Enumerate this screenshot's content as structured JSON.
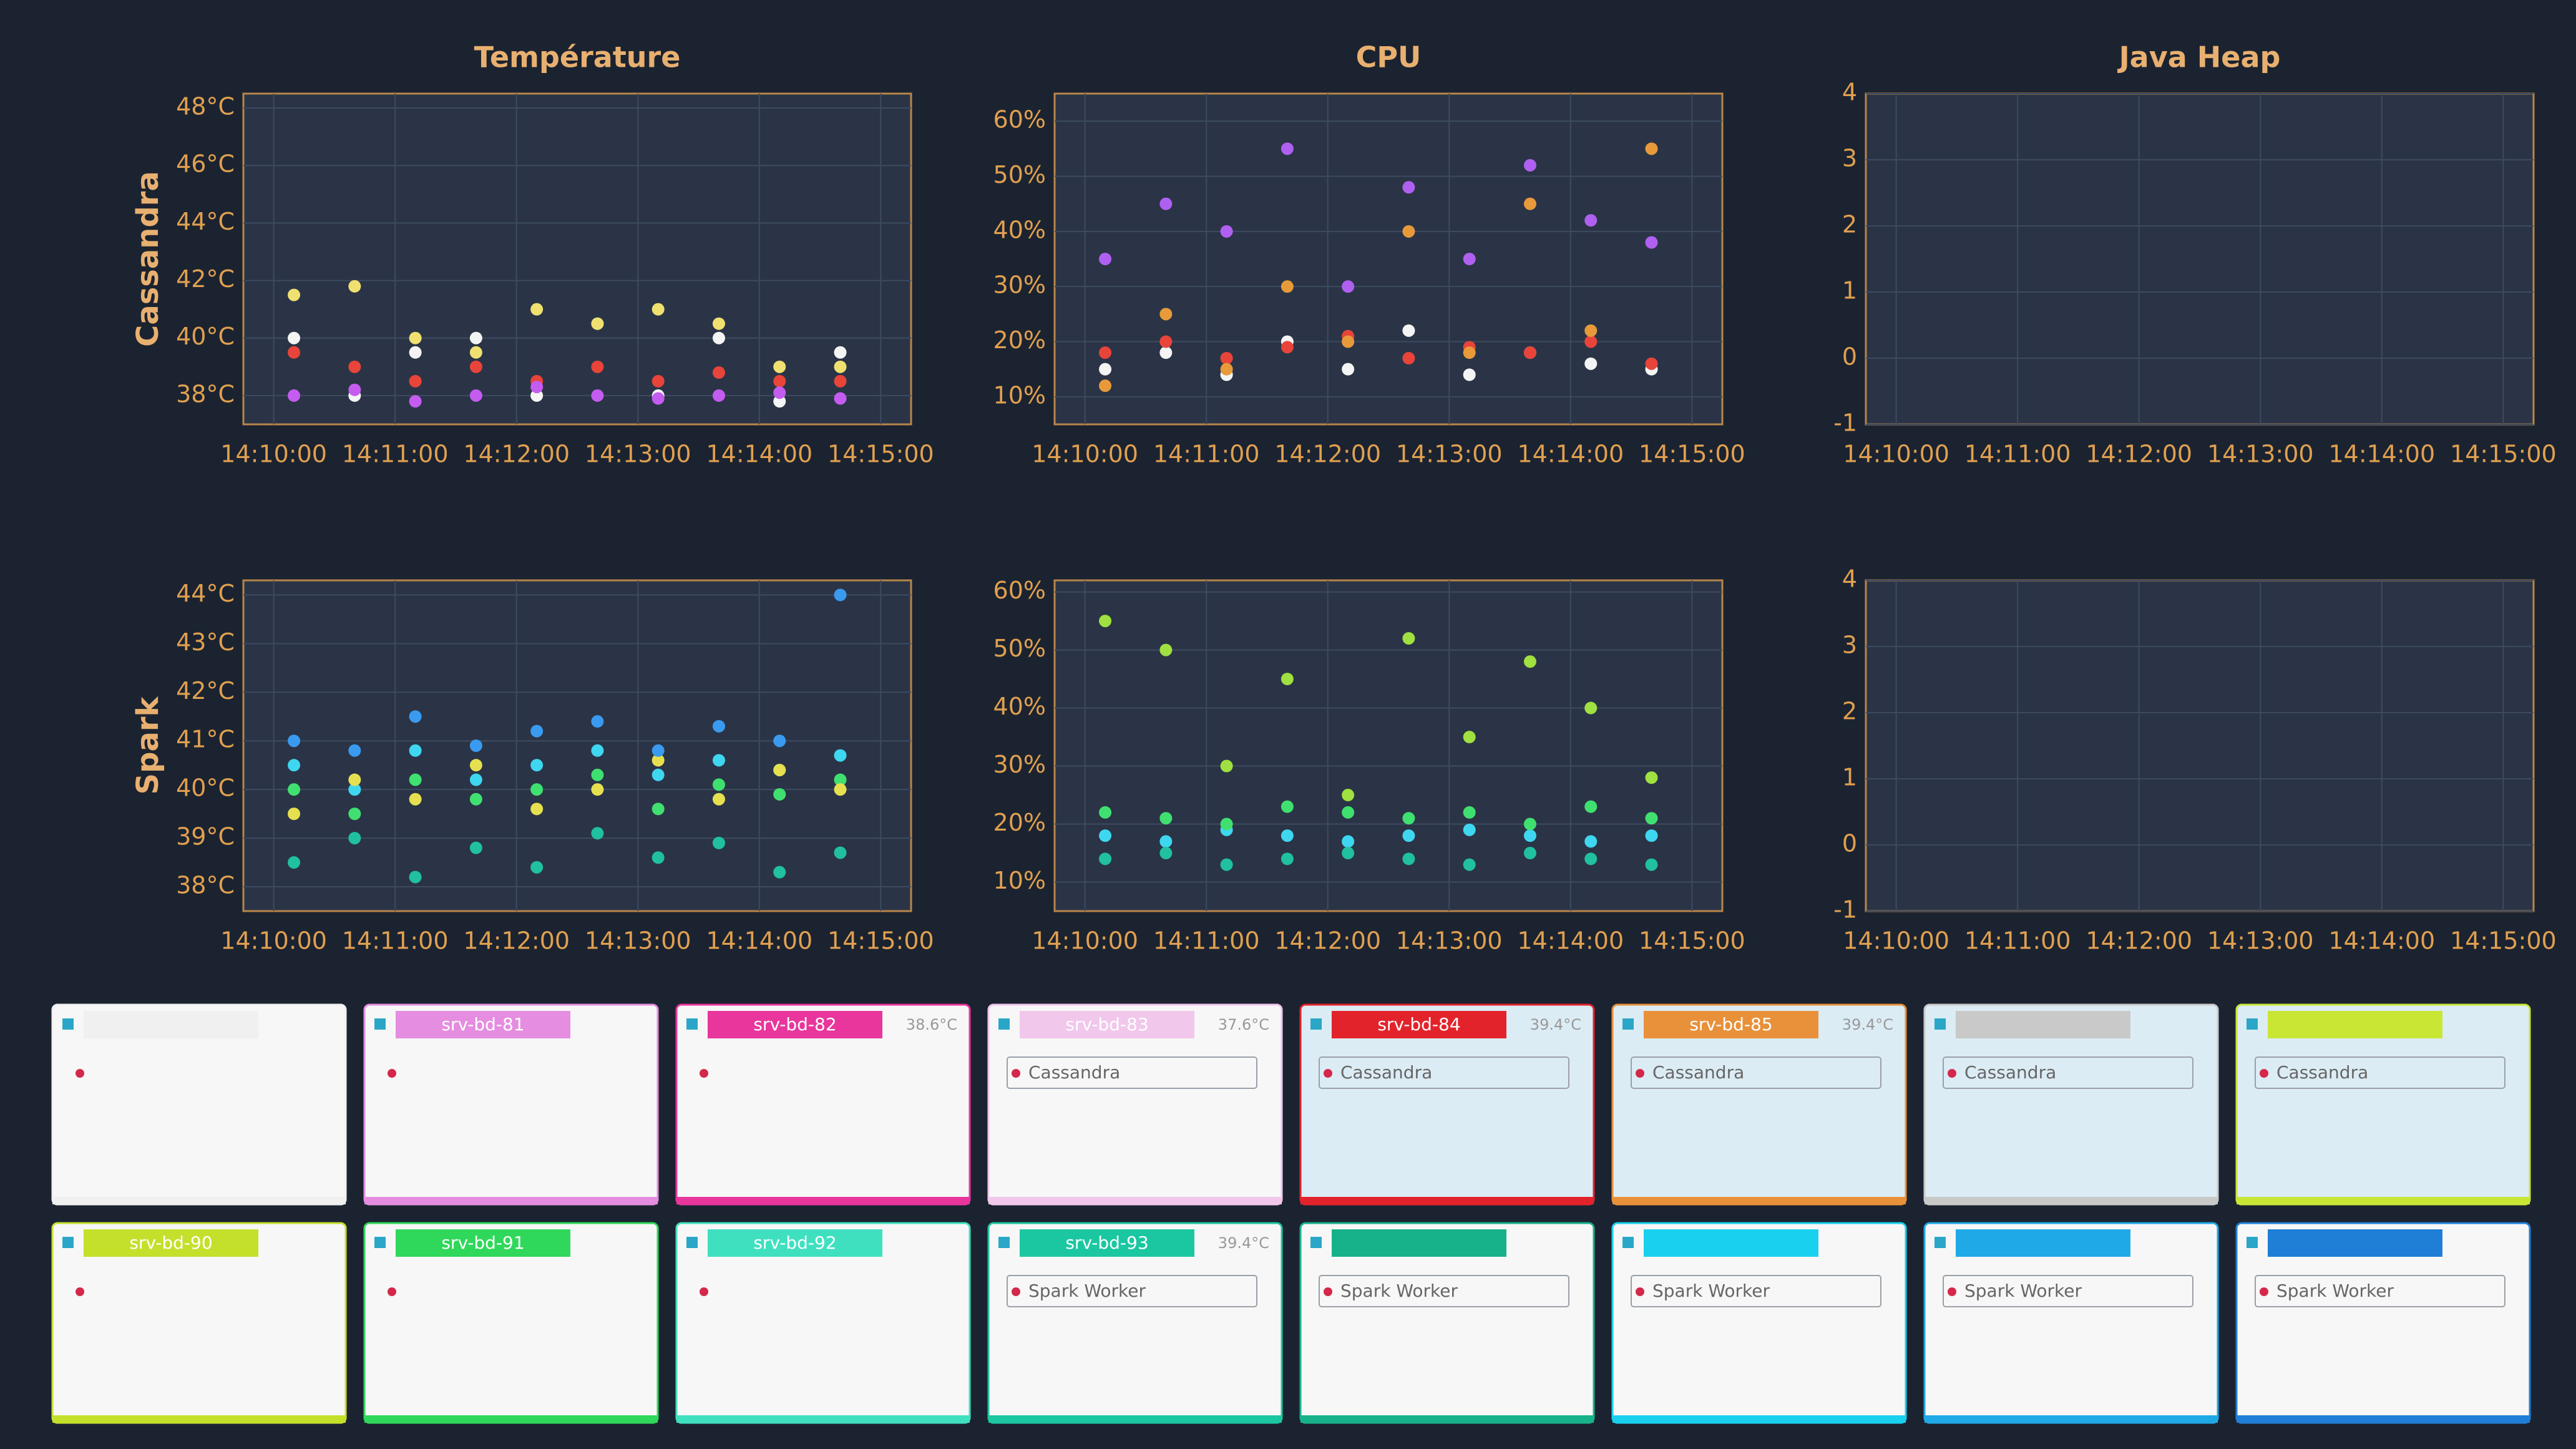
{
  "chart_data": [
    {
      "type": "scatter",
      "title": "Température",
      "ylabel": "Cassandra",
      "x": [
        "14:10:10",
        "14:10:40",
        "14:11:10",
        "14:11:40",
        "14:12:10",
        "14:12:40",
        "14:13:10",
        "14:13:40",
        "14:14:10",
        "14:14:40"
      ],
      "xlim": [
        "14:09:45",
        "14:15:15"
      ],
      "xticks": [
        "14:10:00",
        "14:11:00",
        "14:12:00",
        "14:13:00",
        "14:14:00",
        "14:15:00"
      ],
      "ylim": [
        37,
        48.5
      ],
      "yticks": [
        {
          "value": 38,
          "label": "38°C"
        },
        {
          "value": 40,
          "label": "40°C"
        },
        {
          "value": 42,
          "label": "42°C"
        },
        {
          "value": 44,
          "label": "44°C"
        },
        {
          "value": 46,
          "label": "46°C"
        },
        {
          "value": 48,
          "label": "48°C"
        }
      ],
      "grid": true,
      "series": [
        {
          "color": "#f4f4f4",
          "values": [
            40,
            38,
            39.5,
            40,
            38,
            40.5,
            38,
            40,
            37.8,
            39.5
          ]
        },
        {
          "color": "#e8443a",
          "values": [
            39.5,
            39,
            38.5,
            39,
            38.5,
            39,
            38.5,
            38.8,
            38.5,
            38.5
          ]
        },
        {
          "color": "#c45cf0",
          "values": [
            38,
            38.2,
            37.8,
            38,
            38.3,
            38,
            37.9,
            38,
            38.1,
            37.9
          ]
        },
        {
          "color": "#f0e070",
          "values": [
            41.5,
            41.8,
            40,
            39.5,
            41,
            40.5,
            41,
            40.5,
            39,
            39
          ]
        }
      ]
    },
    {
      "type": "scatter",
      "title": "CPU",
      "x": [
        "14:10:10",
        "14:10:40",
        "14:11:10",
        "14:11:40",
        "14:12:10",
        "14:12:40",
        "14:13:10",
        "14:13:40",
        "14:14:10",
        "14:14:40"
      ],
      "xlim": [
        "14:09:45",
        "14:15:15"
      ],
      "xticks": [
        "14:10:00",
        "14:11:00",
        "14:12:00",
        "14:13:00",
        "14:14:00",
        "14:15:00"
      ],
      "ylim": [
        5,
        65
      ],
      "yticks": [
        {
          "value": 10,
          "label": "10%"
        },
        {
          "value": 20,
          "label": "20%"
        },
        {
          "value": 30,
          "label": "30%"
        },
        {
          "value": 40,
          "label": "40%"
        },
        {
          "value": 50,
          "label": "50%"
        },
        {
          "value": 60,
          "label": "60%"
        }
      ],
      "grid": true,
      "series": [
        {
          "color": "#f4f4f4",
          "values": [
            15,
            18,
            14,
            20,
            15,
            22,
            14,
            18,
            16,
            15
          ]
        },
        {
          "color": "#e8443a",
          "values": [
            18,
            20,
            17,
            19,
            21,
            17,
            19,
            18,
            20,
            16
          ]
        },
        {
          "color": "#b060f0",
          "values": [
            35,
            45,
            40,
            55,
            30,
            48,
            35,
            52,
            42,
            38
          ]
        },
        {
          "color": "#e89a3a",
          "values": [
            12,
            25,
            15,
            30,
            20,
            40,
            18,
            45,
            22,
            55
          ]
        }
      ]
    },
    {
      "type": "scatter",
      "title": "Java Heap",
      "xlim": [
        "14:09:45",
        "14:15:15"
      ],
      "xticks": [
        "14:10:00",
        "14:11:00",
        "14:12:00",
        "14:13:00",
        "14:14:00",
        "14:15:00"
      ],
      "ylim": [
        -1,
        4
      ],
      "yticks": [
        -1,
        0,
        1,
        2,
        3,
        4
      ],
      "grid": true
    },
    {
      "type": "scatter",
      "ylabel": "Spark",
      "x": [
        "14:10:10",
        "14:10:40",
        "14:11:10",
        "14:11:40",
        "14:12:10",
        "14:12:40",
        "14:13:10",
        "14:13:40",
        "14:14:10",
        "14:14:40"
      ],
      "xlim": [
        "14:09:45",
        "14:15:15"
      ],
      "xticks": [
        "14:10:00",
        "14:11:00",
        "14:12:00",
        "14:13:00",
        "14:14:00",
        "14:15:00"
      ],
      "ylim": [
        37.5,
        44.3
      ],
      "yticks": [
        {
          "value": 38,
          "label": "38°C"
        },
        {
          "value": 39,
          "label": "39°C"
        },
        {
          "value": 40,
          "label": "40°C"
        },
        {
          "value": 41,
          "label": "41°C"
        },
        {
          "value": 42,
          "label": "42°C"
        },
        {
          "value": 43,
          "label": "43°C"
        },
        {
          "value": 44,
          "label": "44°C"
        }
      ],
      "grid": true,
      "series": [
        {
          "color": "#3fd6f0",
          "values": [
            40.5,
            40,
            40.8,
            40.2,
            40.5,
            40.8,
            40.3,
            40.6,
            40.4,
            40.7
          ]
        },
        {
          "color": "#40e070",
          "values": [
            40,
            39.5,
            40.2,
            39.8,
            40,
            40.3,
            39.6,
            40.1,
            39.9,
            40.2
          ]
        },
        {
          "color": "#e6e050",
          "values": [
            39.5,
            40.2,
            39.8,
            40.5,
            39.6,
            40,
            40.6,
            39.8,
            40.4,
            40
          ]
        },
        {
          "color": "#20c0a0",
          "values": [
            38.5,
            39,
            38.2,
            38.8,
            38.4,
            39.1,
            38.6,
            38.9,
            38.3,
            38.7
          ]
        },
        {
          "color": "#3a9af0",
          "values": [
            41,
            40.8,
            41.5,
            40.9,
            41.2,
            41.4,
            40.8,
            41.3,
            41,
            44
          ]
        }
      ]
    },
    {
      "type": "scatter",
      "x": [
        "14:10:10",
        "14:10:40",
        "14:11:10",
        "14:11:40",
        "14:12:10",
        "14:12:40",
        "14:13:10",
        "14:13:40",
        "14:14:10",
        "14:14:40"
      ],
      "xlim": [
        "14:09:45",
        "14:15:15"
      ],
      "xticks": [
        "14:10:00",
        "14:11:00",
        "14:12:00",
        "14:13:00",
        "14:14:00",
        "14:15:00"
      ],
      "ylim": [
        5,
        62
      ],
      "yticks": [
        {
          "value": 10,
          "label": "10%"
        },
        {
          "value": 20,
          "label": "20%"
        },
        {
          "value": 30,
          "label": "30%"
        },
        {
          "value": 40,
          "label": "40%"
        },
        {
          "value": 50,
          "label": "50%"
        },
        {
          "value": 60,
          "label": "60%"
        }
      ],
      "grid": true,
      "series": [
        {
          "color": "#3fd6f0",
          "values": [
            18,
            17,
            19,
            18,
            17,
            18,
            19,
            18,
            17,
            18
          ]
        },
        {
          "color": "#40e070",
          "values": [
            22,
            21,
            20,
            23,
            22,
            21,
            22,
            20,
            23,
            21
          ]
        },
        {
          "color": "#20c0a0",
          "values": [
            14,
            15,
            13,
            14,
            15,
            14,
            13,
            15,
            14,
            13
          ]
        },
        {
          "color": "#a0e040",
          "values": [
            55,
            50,
            30,
            45,
            25,
            52,
            35,
            48,
            40,
            28
          ]
        }
      ]
    },
    {
      "type": "scatter",
      "xlim": [
        "14:09:45",
        "14:15:15"
      ],
      "xticks": [
        "14:10:00",
        "14:11:00",
        "14:12:00",
        "14:13:00",
        "14:14:00",
        "14:15:00"
      ],
      "ylim": [
        -1,
        4
      ],
      "yticks": [
        -1,
        0,
        1,
        2,
        3,
        4
      ],
      "grid": true
    }
  ],
  "cards": [
    {
      "color": "#f0f0f0"
    },
    {
      "name": "srv-bd-81",
      "color": "#e58de0"
    },
    {
      "name": "srv-bd-82",
      "temp": "38.6°C",
      "color": "#e8369c"
    },
    {
      "name": "srv-bd-83",
      "temp": "37.6°C",
      "service": "Cassandra",
      "color": "#f1c7ec"
    },
    {
      "name": "srv-bd-84",
      "temp": "39.4°C",
      "service": "Cassandra",
      "color": "#e3232b"
    },
    {
      "name": "srv-bd-85",
      "temp": "39.4°C",
      "service": "Cassandra",
      "color": "#e8913a"
    },
    {
      "service": "Cassandra",
      "color": "#c9c9c9"
    },
    {
      "service": "Cassandra",
      "color": "#c9e635"
    },
    {
      "name": "srv-bd-90",
      "color": "#c5e02b"
    },
    {
      "name": "srv-bd-91",
      "color": "#2fd85a"
    },
    {
      "name": "srv-bd-92",
      "color": "#3fe0c0"
    },
    {
      "name": "srv-bd-93",
      "temp": "39.4°C",
      "service": "Spark Worker",
      "color": "#1bc7a1"
    },
    {
      "service": "Spark Worker",
      "color": "#17b28a"
    },
    {
      "service": "Spark Worker",
      "color": "#19d1ee"
    },
    {
      "service": "Spark Worker",
      "color": "#1fa9e6"
    },
    {
      "service": "Spark Worker",
      "color": "#1f7fd6"
    }
  ]
}
